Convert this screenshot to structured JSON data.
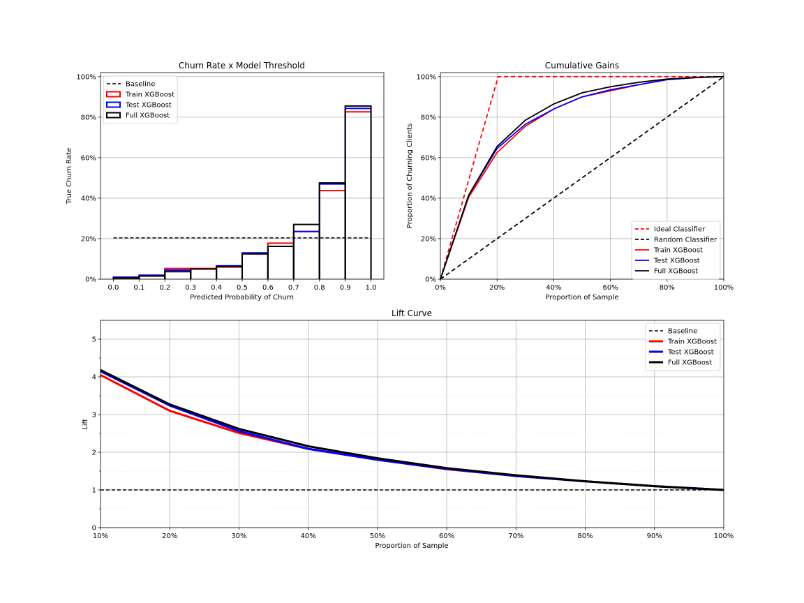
{
  "colors": {
    "train": "#ff0000",
    "test": "#0000ff",
    "full": "#000000",
    "baseline": "#000000",
    "grid": "#b0b0b0"
  },
  "chart_data": [
    {
      "id": "hist",
      "type": "bar",
      "title": "Churn Rate x Model Threshold",
      "xlabel": "Predicted Probability of Churn",
      "ylabel": "True Churn Rate",
      "xlim": [
        -0.05,
        1.05
      ],
      "ylim": [
        0,
        1.02
      ],
      "xticks": [
        0.0,
        0.1,
        0.2,
        0.3,
        0.4,
        0.5,
        0.6,
        0.7,
        0.8,
        0.9,
        1.0
      ],
      "xtick_labels": [
        "0.0",
        "0.1",
        "0.2",
        "0.3",
        "0.4",
        "0.5",
        "0.6",
        "0.7",
        "0.8",
        "0.9",
        "1.0"
      ],
      "yticks": [
        0,
        0.2,
        0.4,
        0.6,
        0.8,
        1.0
      ],
      "ytick_labels": [
        "0%",
        "20%",
        "40%",
        "60%",
        "80%",
        "100%"
      ],
      "grid": "y",
      "legend_position": "upper-left",
      "bin_edges": [
        0.0,
        0.1,
        0.2,
        0.3,
        0.4,
        0.5,
        0.6,
        0.7,
        0.8,
        0.9,
        1.0
      ],
      "baseline": {
        "name": "Baseline",
        "value": 0.204,
        "x": [
          0.0,
          1.0
        ]
      },
      "series": [
        {
          "name": "Train XGBoost",
          "color_key": "train",
          "values": [
            0.005,
            0.015,
            0.053,
            0.053,
            0.06,
            0.125,
            0.178,
            0.235,
            0.437,
            0.826
          ]
        },
        {
          "name": "Test XGBoost",
          "color_key": "test",
          "values": [
            0.01,
            0.02,
            0.045,
            0.05,
            0.066,
            0.13,
            0.162,
            0.235,
            0.47,
            0.843
          ]
        },
        {
          "name": "Full XGBoost",
          "color_key": "full",
          "values": [
            0.006,
            0.016,
            0.037,
            0.05,
            0.062,
            0.125,
            0.162,
            0.27,
            0.475,
            0.855
          ]
        }
      ]
    },
    {
      "id": "gains",
      "type": "line",
      "title": "Cumulative Gains",
      "xlabel": "Proportion of Sample",
      "ylabel": "Proportion of Churning Clients",
      "xlim": [
        0,
        1
      ],
      "ylim": [
        0,
        1.02
      ],
      "xticks": [
        0,
        0.2,
        0.4,
        0.6,
        0.8,
        1.0
      ],
      "xtick_labels": [
        "0%",
        "20%",
        "40%",
        "60%",
        "80%",
        "100%"
      ],
      "yticks": [
        0,
        0.2,
        0.4,
        0.6,
        0.8,
        1.0
      ],
      "ytick_labels": [
        "0%",
        "20%",
        "40%",
        "60%",
        "80%",
        "100%"
      ],
      "grid": "both",
      "legend_position": "lower-right",
      "x": [
        0,
        0.1,
        0.2,
        0.3,
        0.4,
        0.5,
        0.6,
        0.7,
        0.8,
        0.9,
        1.0
      ],
      "series": [
        {
          "name": "Ideal Classifier",
          "color_key": "train",
          "dashed": true,
          "x": [
            0,
            0.204,
            1.0
          ],
          "values": [
            0,
            1.0,
            1.0
          ]
        },
        {
          "name": "Random Classifier",
          "color_key": "baseline",
          "dashed": true,
          "x": [
            0,
            1.0
          ],
          "values": [
            0,
            1.0
          ]
        },
        {
          "name": "Train XGBoost",
          "color_key": "train",
          "values": [
            0,
            0.405,
            0.625,
            0.755,
            0.84,
            0.9,
            0.93,
            0.96,
            0.985,
            0.995,
            1.0
          ]
        },
        {
          "name": "Test XGBoost",
          "color_key": "test",
          "values": [
            0,
            0.415,
            0.645,
            0.765,
            0.84,
            0.9,
            0.935,
            0.96,
            0.985,
            0.995,
            1.0
          ]
        },
        {
          "name": "Full XGBoost",
          "color_key": "full",
          "values": [
            0,
            0.415,
            0.655,
            0.785,
            0.865,
            0.92,
            0.95,
            0.972,
            0.988,
            0.996,
            1.0
          ]
        }
      ]
    },
    {
      "id": "lift",
      "type": "line",
      "title": "Lift Curve",
      "xlabel": "Proportion of Sample",
      "ylabel": "Lift",
      "xlim": [
        0.1,
        1.0
      ],
      "ylim": [
        0,
        5.5
      ],
      "xticks": [
        0.1,
        0.2,
        0.3,
        0.4,
        0.5,
        0.6,
        0.7,
        0.8,
        0.9,
        1.0
      ],
      "xtick_labels": [
        "10%",
        "20%",
        "30%",
        "40%",
        "50%",
        "60%",
        "70%",
        "80%",
        "90%",
        "100%"
      ],
      "yticks": [
        0,
        1,
        2,
        3,
        4,
        5
      ],
      "ytick_labels": [
        "0",
        "1",
        "2",
        "3",
        "4",
        "5"
      ],
      "grid": "both",
      "legend_position": "upper-right",
      "x": [
        0.1,
        0.2,
        0.3,
        0.4,
        0.5,
        0.6,
        0.7,
        0.8,
        0.9,
        1.0
      ],
      "baseline": {
        "name": "Baseline",
        "value": 1.0
      },
      "series": [
        {
          "name": "Train XGBoost",
          "color_key": "train",
          "values": [
            4.05,
            3.1,
            2.51,
            2.09,
            1.8,
            1.55,
            1.37,
            1.23,
            1.1,
            1.0
          ]
        },
        {
          "name": "Test XGBoost",
          "color_key": "test",
          "values": [
            4.15,
            3.24,
            2.56,
            2.09,
            1.8,
            1.56,
            1.37,
            1.23,
            1.1,
            1.0
          ]
        },
        {
          "name": "Full XGBoost",
          "color_key": "full",
          "values": [
            4.18,
            3.27,
            2.62,
            2.16,
            1.84,
            1.58,
            1.39,
            1.23,
            1.1,
            1.0
          ]
        }
      ]
    }
  ]
}
